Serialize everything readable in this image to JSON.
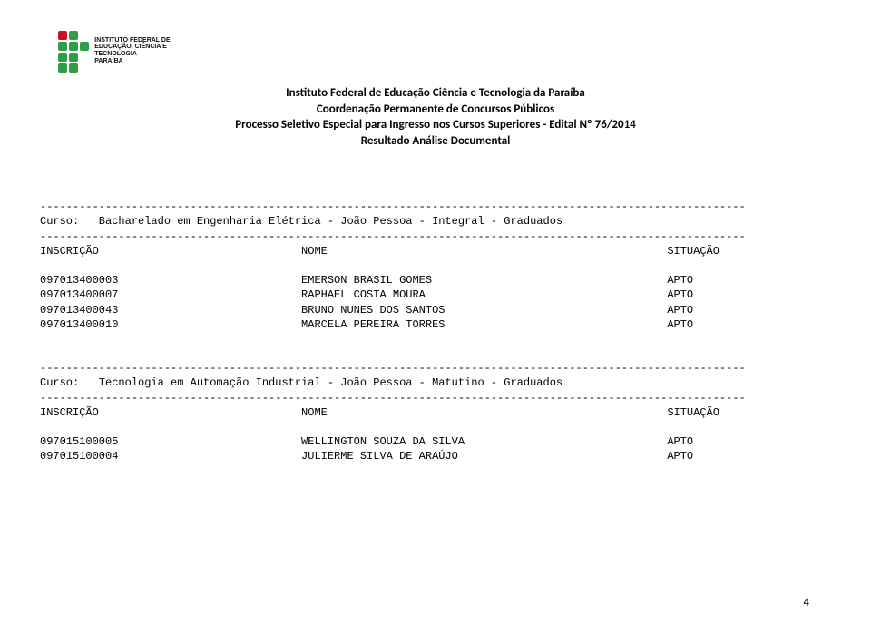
{
  "logo": {
    "line1": "INSTITUTO FEDERAL DE",
    "line2": "EDUCAÇÃO, CIÊNCIA E TECNOLOGIA",
    "line3": "PARAÍBA"
  },
  "header": {
    "line1": "Instituto Federal de Educação Ciência e Tecnologia da Paraíba",
    "line2": "Coordenação Permanente de Concursos Públicos",
    "line3": "Processo Seletivo Especial para Ingresso nos Cursos Superiores -  Edital Nº 76/2014",
    "line4": "Resultado Análise Documental"
  },
  "columns": {
    "inscricao": "INSCRIÇÃO",
    "nome": "NOME",
    "situacao": "SITUAÇÃO"
  },
  "curso_label": "Curso:",
  "sections": [
    {
      "title": "Bacharelado em Engenharia Elétrica - João Pessoa - Integral - Graduados",
      "rows": [
        {
          "inscricao": "097013400003",
          "nome": "EMERSON BRASIL GOMES",
          "situacao": "APTO"
        },
        {
          "inscricao": "097013400007",
          "nome": "RAPHAEL COSTA MOURA",
          "situacao": "APTO"
        },
        {
          "inscricao": "097013400043",
          "nome": "BRUNO NUNES DOS SANTOS",
          "situacao": "APTO"
        },
        {
          "inscricao": "097013400010",
          "nome": "MARCELA PEREIRA TORRES",
          "situacao": "APTO"
        }
      ]
    },
    {
      "title": "Tecnologia em Automação Industrial - João Pessoa - Matutino - Graduados",
      "rows": [
        {
          "inscricao": "097015100005",
          "nome": "WELLINGTON SOUZA DA SILVA",
          "situacao": "APTO"
        },
        {
          "inscricao": "097015100004",
          "nome": "JULIERME SILVA DE ARAÚJO",
          "situacao": "APTO"
        }
      ]
    }
  ],
  "layout": {
    "dash_width": 108,
    "col1_width": 40,
    "col2_width": 56
  },
  "page_number": "4"
}
